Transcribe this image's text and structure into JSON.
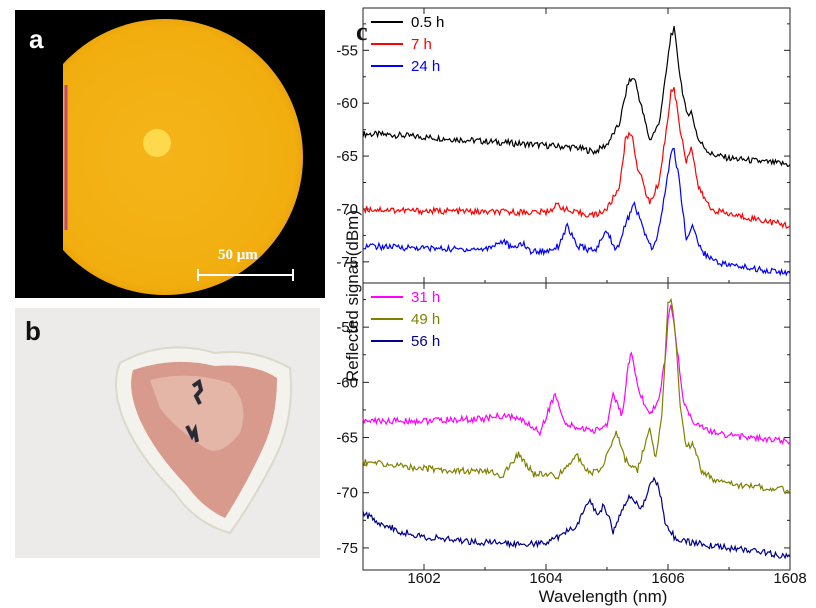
{
  "panel_a": {
    "letter": "a",
    "scale_bar_label": "50 μm",
    "colors": {
      "disc": "#f2b111",
      "core": "#ffd84a",
      "background": "#000000"
    }
  },
  "panel_b": {
    "letter": "b",
    "colors": {
      "fur": "#f3f1ea",
      "tissue": "#d89a8c",
      "suture": "#2a2a35"
    }
  },
  "chart_data": {
    "type": "line",
    "panel_letter": "c",
    "xlabel": "Wavelength (nm)",
    "ylabel": "Reflected signal (dBm)",
    "xlim": [
      1601,
      1608
    ],
    "x_ticks": [
      1602,
      1604,
      1606,
      1608
    ],
    "grid": false,
    "subplots": [
      {
        "ylim": [
          -77,
          -51
        ],
        "y_ticks": [
          -55,
          -60,
          -65,
          -70,
          -75
        ],
        "legend_position": "top-left",
        "series": [
          {
            "name": "0.5 h",
            "color": "#000000",
            "points": [
              [
                1601.0,
                -62.9
              ],
              [
                1601.5,
                -63.0
              ],
              [
                1602.0,
                -63.2
              ],
              [
                1602.5,
                -63.4
              ],
              [
                1603.0,
                -63.6
              ],
              [
                1603.5,
                -63.8
              ],
              [
                1604.0,
                -64.0
              ],
              [
                1604.5,
                -64.2
              ],
              [
                1604.8,
                -64.6
              ],
              [
                1605.0,
                -63.9
              ],
              [
                1605.2,
                -62.0
              ],
              [
                1605.35,
                -58.0
              ],
              [
                1605.45,
                -57.6
              ],
              [
                1605.55,
                -60.0
              ],
              [
                1605.7,
                -63.5
              ],
              [
                1605.85,
                -62.0
              ],
              [
                1605.95,
                -58.0
              ],
              [
                1606.05,
                -53.5
              ],
              [
                1606.1,
                -53.0
              ],
              [
                1606.2,
                -57.5
              ],
              [
                1606.3,
                -61.0
              ],
              [
                1606.38,
                -60.8
              ],
              [
                1606.5,
                -63.5
              ],
              [
                1606.7,
                -64.8
              ],
              [
                1607.0,
                -65.2
              ],
              [
                1607.5,
                -65.5
              ],
              [
                1608.0,
                -65.8
              ]
            ]
          },
          {
            "name": "7 h",
            "color": "#ff0000",
            "points": [
              [
                1601.0,
                -70.0
              ],
              [
                1601.5,
                -70.1
              ],
              [
                1602.0,
                -70.2
              ],
              [
                1602.5,
                -70.2
              ],
              [
                1603.0,
                -70.3
              ],
              [
                1603.5,
                -70.3
              ],
              [
                1604.0,
                -70.3
              ],
              [
                1604.2,
                -69.6
              ],
              [
                1604.4,
                -70.3
              ],
              [
                1604.8,
                -70.6
              ],
              [
                1605.0,
                -70.0
              ],
              [
                1605.2,
                -68.0
              ],
              [
                1605.3,
                -63.5
              ],
              [
                1605.4,
                -62.8
              ],
              [
                1605.5,
                -66.0
              ],
              [
                1605.7,
                -69.5
              ],
              [
                1605.85,
                -67.5
              ],
              [
                1605.95,
                -63.5
              ],
              [
                1606.05,
                -59.0
              ],
              [
                1606.1,
                -58.5
              ],
              [
                1606.2,
                -62.5
              ],
              [
                1606.3,
                -65.5
              ],
              [
                1606.38,
                -64.0
              ],
              [
                1606.5,
                -68.0
              ],
              [
                1606.7,
                -70.0
              ],
              [
                1607.0,
                -70.5
              ],
              [
                1607.5,
                -71.0
              ],
              [
                1608.0,
                -71.6
              ]
            ]
          },
          {
            "name": "24 h",
            "color": "#0000ff",
            "points": [
              [
                1601.0,
                -73.5
              ],
              [
                1601.5,
                -73.6
              ],
              [
                1602.0,
                -73.7
              ],
              [
                1602.5,
                -73.8
              ],
              [
                1603.0,
                -73.8
              ],
              [
                1603.3,
                -73.0
              ],
              [
                1603.45,
                -73.8
              ],
              [
                1603.6,
                -73.2
              ],
              [
                1603.75,
                -74.0
              ],
              [
                1604.0,
                -74.0
              ],
              [
                1604.2,
                -73.5
              ],
              [
                1604.35,
                -71.6
              ],
              [
                1604.5,
                -73.5
              ],
              [
                1604.8,
                -74.0
              ],
              [
                1605.0,
                -72.0
              ],
              [
                1605.15,
                -74.0
              ],
              [
                1605.3,
                -71.5
              ],
              [
                1605.45,
                -69.5
              ],
              [
                1605.6,
                -72.0
              ],
              [
                1605.75,
                -74.0
              ],
              [
                1605.85,
                -72.0
              ],
              [
                1605.95,
                -68.5
              ],
              [
                1606.05,
                -64.8
              ],
              [
                1606.1,
                -64.3
              ],
              [
                1606.2,
                -68.0
              ],
              [
                1606.3,
                -73.0
              ],
              [
                1606.4,
                -71.5
              ],
              [
                1606.55,
                -74.0
              ],
              [
                1606.8,
                -75.0
              ],
              [
                1607.0,
                -75.3
              ],
              [
                1607.5,
                -75.7
              ],
              [
                1608.0,
                -76.1
              ]
            ]
          }
        ]
      },
      {
        "ylim": [
          -77,
          -51
        ],
        "y_ticks": [
          -55,
          -60,
          -65,
          -70,
          -75
        ],
        "legend_position": "top-left",
        "series": [
          {
            "name": "31 h",
            "color": "#ff00ff",
            "points": [
              [
                1601.0,
                -63.5
              ],
              [
                1601.5,
                -63.5
              ],
              [
                1602.0,
                -63.5
              ],
              [
                1602.5,
                -63.4
              ],
              [
                1603.0,
                -63.3
              ],
              [
                1603.3,
                -63.0
              ],
              [
                1603.6,
                -63.4
              ],
              [
                1603.9,
                -64.5
              ],
              [
                1604.15,
                -61.0
              ],
              [
                1604.3,
                -63.8
              ],
              [
                1604.6,
                -64.2
              ],
              [
                1604.8,
                -64.4
              ],
              [
                1605.0,
                -63.8
              ],
              [
                1605.1,
                -61.0
              ],
              [
                1605.25,
                -63.0
              ],
              [
                1605.35,
                -58.5
              ],
              [
                1605.4,
                -57.4
              ],
              [
                1605.5,
                -60.5
              ],
              [
                1605.7,
                -63.0
              ],
              [
                1605.85,
                -61.5
              ],
              [
                1605.95,
                -58.0
              ],
              [
                1606.0,
                -54.5
              ],
              [
                1606.05,
                -53.0
              ],
              [
                1606.15,
                -57.0
              ],
              [
                1606.25,
                -61.5
              ],
              [
                1606.4,
                -63.5
              ],
              [
                1606.6,
                -64.3
              ],
              [
                1607.0,
                -64.8
              ],
              [
                1607.5,
                -65.1
              ],
              [
                1608.0,
                -65.4
              ]
            ]
          },
          {
            "name": "49 h",
            "color": "#808000",
            "points": [
              [
                1601.0,
                -67.2
              ],
              [
                1601.5,
                -67.5
              ],
              [
                1602.0,
                -67.8
              ],
              [
                1602.5,
                -68.0
              ],
              [
                1603.0,
                -68.1
              ],
              [
                1603.3,
                -68.4
              ],
              [
                1603.55,
                -66.5
              ],
              [
                1603.8,
                -68.3
              ],
              [
                1604.2,
                -68.5
              ],
              [
                1604.5,
                -66.5
              ],
              [
                1604.7,
                -68.3
              ],
              [
                1604.9,
                -67.8
              ],
              [
                1605.05,
                -66.0
              ],
              [
                1605.15,
                -64.5
              ],
              [
                1605.3,
                -67.0
              ],
              [
                1605.5,
                -68.0
              ],
              [
                1605.6,
                -66.0
              ],
              [
                1605.7,
                -64.0
              ],
              [
                1605.8,
                -67.0
              ],
              [
                1605.9,
                -63.0
              ],
              [
                1606.0,
                -53.0
              ],
              [
                1606.05,
                -52.3
              ],
              [
                1606.12,
                -55.5
              ],
              [
                1606.2,
                -62.0
              ],
              [
                1606.3,
                -66.0
              ],
              [
                1606.4,
                -65.5
              ],
              [
                1606.55,
                -68.0
              ],
              [
                1606.8,
                -69.0
              ],
              [
                1607.0,
                -69.2
              ],
              [
                1607.5,
                -69.5
              ],
              [
                1608.0,
                -69.8
              ]
            ]
          },
          {
            "name": "56 h",
            "color": "#00008b",
            "points": [
              [
                1601.0,
                -71.8
              ],
              [
                1601.3,
                -72.8
              ],
              [
                1601.6,
                -73.5
              ],
              [
                1602.0,
                -74.0
              ],
              [
                1602.5,
                -74.3
              ],
              [
                1603.0,
                -74.5
              ],
              [
                1603.5,
                -74.6
              ],
              [
                1604.0,
                -74.6
              ],
              [
                1604.2,
                -74.0
              ],
              [
                1604.5,
                -73.0
              ],
              [
                1604.7,
                -70.6
              ],
              [
                1604.85,
                -72.0
              ],
              [
                1604.95,
                -71.0
              ],
              [
                1605.1,
                -73.5
              ],
              [
                1605.3,
                -71.0
              ],
              [
                1605.4,
                -70.2
              ],
              [
                1605.55,
                -71.5
              ],
              [
                1605.75,
                -68.8
              ],
              [
                1605.85,
                -69.5
              ],
              [
                1605.95,
                -72.5
              ],
              [
                1606.1,
                -74.0
              ],
              [
                1606.3,
                -74.4
              ],
              [
                1606.6,
                -74.7
              ],
              [
                1607.0,
                -75.0
              ],
              [
                1607.5,
                -75.3
              ],
              [
                1608.0,
                -75.8
              ]
            ]
          }
        ]
      }
    ]
  }
}
